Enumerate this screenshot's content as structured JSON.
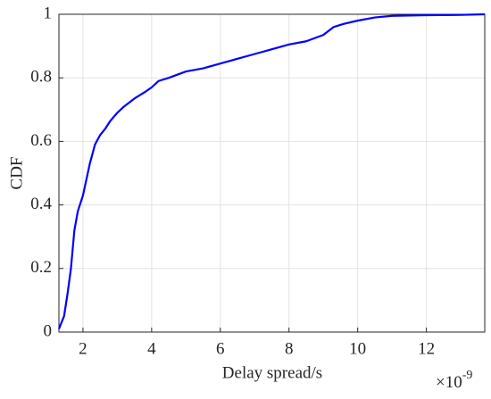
{
  "chart_data": {
    "type": "line",
    "x_label": "Delay spread/s",
    "y_label": "CDF",
    "x_scale_label": {
      "base": "×10",
      "exponent": "-9"
    },
    "x": [
      1.3,
      1.45,
      1.55,
      1.65,
      1.75,
      1.85,
      2.0,
      2.1,
      2.2,
      2.35,
      2.5,
      2.65,
      2.8,
      3.0,
      3.2,
      3.5,
      3.8,
      4.0,
      4.2,
      4.5,
      5.0,
      5.5,
      6.0,
      6.5,
      7.0,
      7.5,
      8.0,
      8.5,
      9.0,
      9.3,
      9.6,
      10.0,
      10.5,
      11.0,
      12.0,
      13.0,
      13.7
    ],
    "series": [
      {
        "color": "#0000ff",
        "values": [
          0.01,
          0.05,
          0.12,
          0.2,
          0.32,
          0.38,
          0.43,
          0.48,
          0.53,
          0.59,
          0.62,
          0.64,
          0.665,
          0.69,
          0.71,
          0.735,
          0.755,
          0.77,
          0.79,
          0.8,
          0.82,
          0.83,
          0.845,
          0.86,
          0.875,
          0.89,
          0.905,
          0.915,
          0.935,
          0.96,
          0.97,
          0.98,
          0.99,
          0.995,
          0.997,
          0.998,
          1.0
        ]
      }
    ],
    "xlim": [
      1.3,
      13.7
    ],
    "xticks": [
      2,
      4,
      6,
      8,
      10,
      12
    ],
    "ylim": [
      0,
      1
    ],
    "yticks": [
      0,
      0.2,
      0.4,
      0.6,
      0.8,
      1
    ],
    "grid": true
  }
}
